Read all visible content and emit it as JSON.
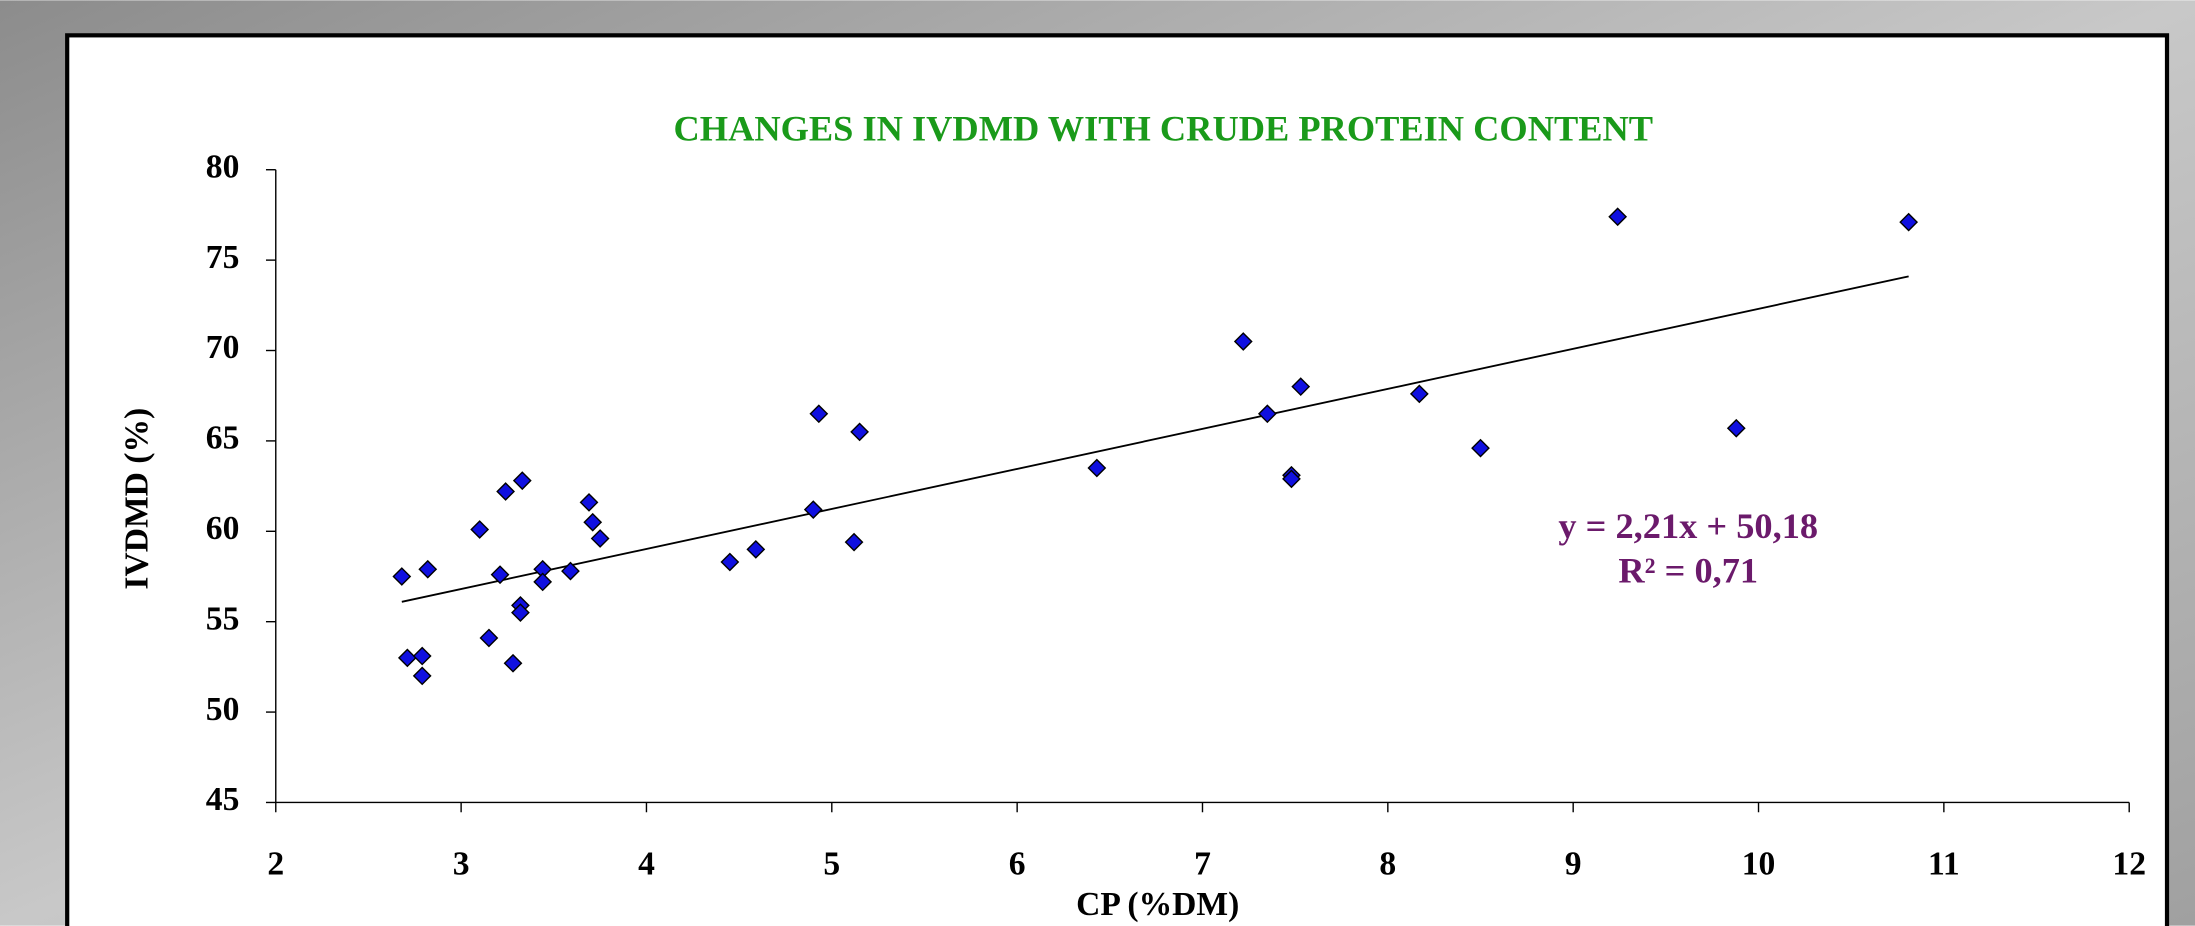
{
  "chart_data": {
    "type": "scatter",
    "title": "CHANGES IN IVDMD WITH CRUDE PROTEIN CONTENT",
    "x_label": "CP (%DM)",
    "y_label": "IVDMD (%)",
    "equation": "y = 2,21x + 50,18",
    "r_squared": "R² = 0,71",
    "color": "#1010e0",
    "x": [
      2.68,
      2.71,
      2.79,
      2.79,
      2.82,
      3.1,
      3.15,
      3.21,
      3.24,
      3.28,
      3.32,
      3.32,
      3.33,
      3.44,
      3.44,
      3.59,
      3.69,
      3.71,
      3.75,
      4.45,
      4.59,
      4.9,
      4.93,
      5.12,
      5.15,
      6.43,
      7.22,
      7.35,
      7.48,
      7.48,
      7.53,
      8.17,
      8.5,
      9.24,
      9.88,
      10.81
    ],
    "values": [
      57.5,
      53.0,
      53.1,
      52.0,
      57.9,
      60.1,
      54.1,
      57.6,
      62.2,
      52.7,
      55.9,
      55.5,
      62.8,
      57.9,
      57.2,
      57.8,
      61.6,
      60.5,
      59.6,
      58.3,
      59.0,
      61.2,
      66.5,
      59.4,
      65.5,
      63.5,
      70.5,
      66.5,
      63.1,
      62.9,
      68.0,
      67.6,
      64.6,
      77.4,
      65.7,
      77.1
    ],
    "trendline": {
      "x": [
        2.68,
        10.81
      ],
      "y": [
        56.1,
        74.1
      ]
    },
    "xlim": [
      2,
      12
    ],
    "xticks": [
      2,
      3,
      4,
      5,
      6,
      7,
      8,
      9,
      10,
      11,
      12
    ],
    "ylim": [
      45,
      80
    ],
    "yticks": [
      45,
      50,
      55,
      60,
      65,
      70,
      75,
      80
    ],
    "grid": false
  }
}
